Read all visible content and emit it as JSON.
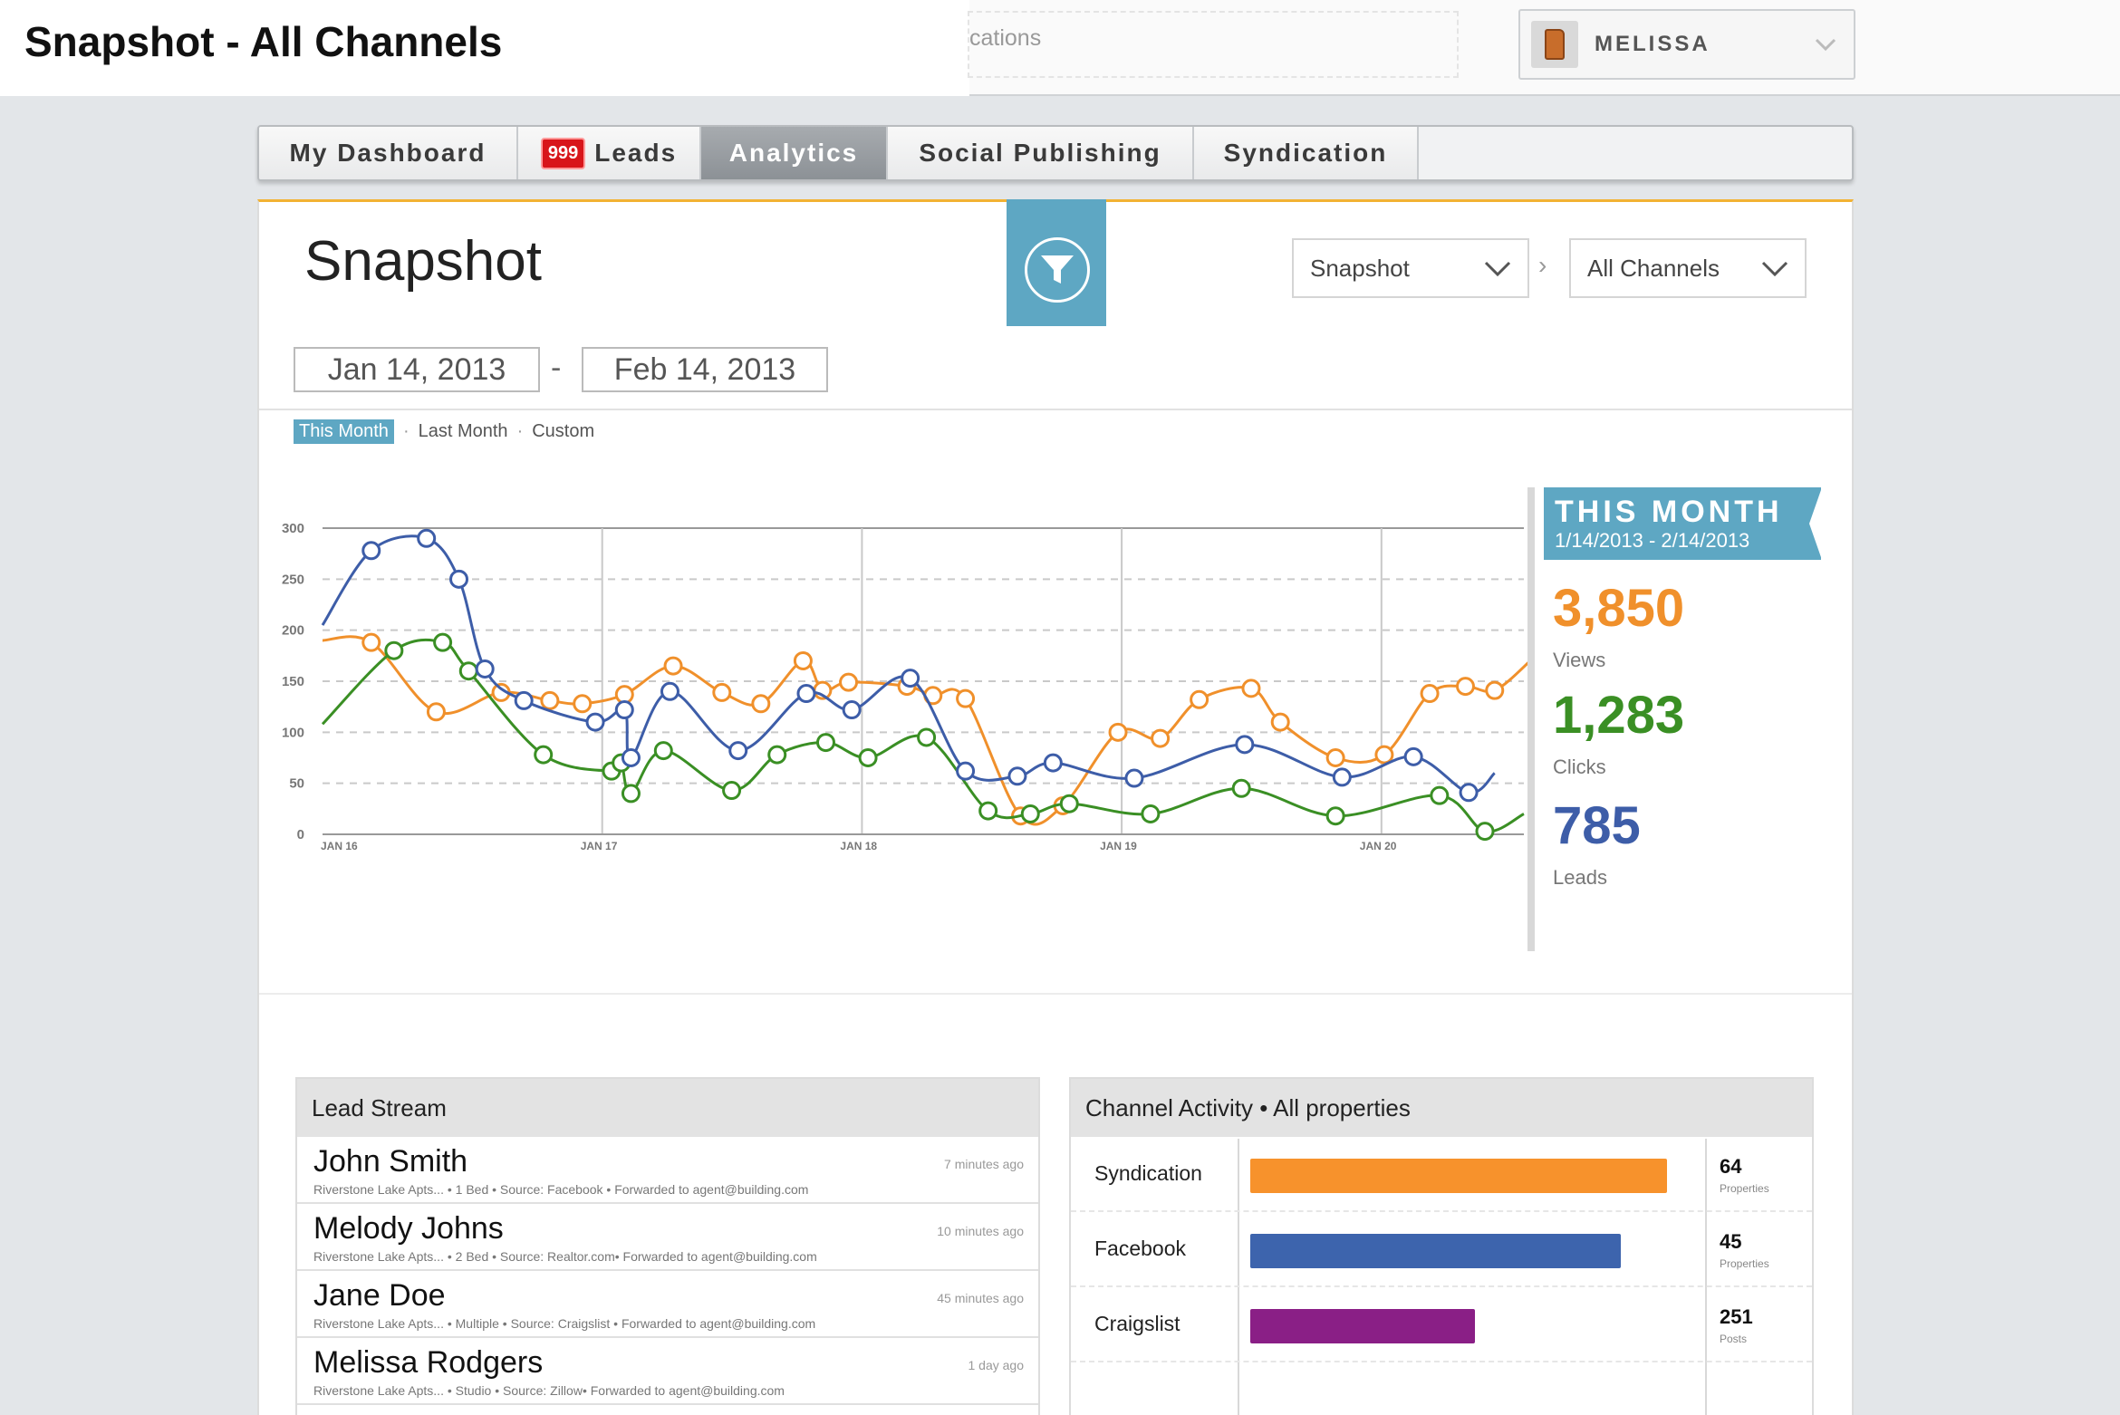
{
  "window": {
    "title": "Snapshot - All Channels"
  },
  "header": {
    "search_text": "cations",
    "user": {
      "name": "MELISSA"
    }
  },
  "tabs": [
    {
      "label": "My Dashboard"
    },
    {
      "label": "Leads",
      "badge": "999"
    },
    {
      "label": "Analytics",
      "active": true
    },
    {
      "label": "Social Publishing"
    },
    {
      "label": "Syndication"
    }
  ],
  "page": {
    "title": "Snapshot",
    "report_select": "Snapshot",
    "channel_select": "All Channels",
    "date_from": "Jan 14, 2013",
    "date_to": "Feb 14, 2013",
    "date_separator": "-",
    "periods": [
      "This Month",
      "Last Month",
      "Custom"
    ]
  },
  "summary": {
    "label": "THIS MONTH",
    "range": "1/14/2013 - 2/14/2013",
    "views": {
      "value": "3,850",
      "label": "Views"
    },
    "clicks": {
      "value": "1,283",
      "label": "Clicks"
    },
    "leads": {
      "value": "785",
      "label": "Leads"
    }
  },
  "chart_data": {
    "type": "line",
    "ylim": [
      0,
      300
    ],
    "yticks": [
      0,
      50,
      100,
      150,
      200,
      250,
      300
    ],
    "xlim": [
      0,
      37
    ],
    "xticks": [
      {
        "x": 0,
        "label": "JAN 16"
      },
      {
        "x": 8,
        "label": "JAN 17"
      },
      {
        "x": 16,
        "label": "JAN 18"
      },
      {
        "x": 24,
        "label": "JAN 19"
      },
      {
        "x": 32,
        "label": "JAN 20"
      }
    ],
    "grid": {
      "horizontal": "dashed",
      "vertical": "solid"
    },
    "series": [
      {
        "color": "#f0902b",
        "points": [
          [
            0,
            190
          ],
          [
            1.5,
            188
          ],
          [
            3.5,
            120
          ],
          [
            5.5,
            139
          ],
          [
            7,
            131
          ],
          [
            8,
            128
          ],
          [
            9.3,
            137
          ],
          [
            10.8,
            165
          ],
          [
            12.3,
            139
          ],
          [
            13.5,
            128
          ],
          [
            14.8,
            170
          ],
          [
            15.4,
            141
          ],
          [
            16.2,
            149
          ],
          [
            18,
            145
          ],
          [
            18.8,
            136
          ],
          [
            19.8,
            133
          ],
          [
            21.5,
            18
          ],
          [
            22.8,
            28
          ],
          [
            24.5,
            100
          ],
          [
            25.8,
            94
          ],
          [
            27,
            132
          ],
          [
            28.6,
            143
          ],
          [
            29.5,
            110
          ],
          [
            31.2,
            75
          ],
          [
            32.7,
            78
          ],
          [
            34.1,
            138
          ],
          [
            35.2,
            145
          ],
          [
            36.1,
            141
          ],
          [
            37.2,
            170
          ]
        ]
      },
      {
        "color": "#3a8f24",
        "points": [
          [
            0,
            108
          ],
          [
            2.2,
            180
          ],
          [
            3.7,
            188
          ],
          [
            4.5,
            160
          ],
          [
            6.8,
            78
          ],
          [
            8.9,
            62
          ],
          [
            9.2,
            70
          ],
          [
            9.5,
            40
          ],
          [
            10.5,
            82
          ],
          [
            12.6,
            43
          ],
          [
            14,
            78
          ],
          [
            15.5,
            90
          ],
          [
            16.8,
            75
          ],
          [
            18.6,
            95
          ],
          [
            20.5,
            23
          ],
          [
            21.8,
            20
          ],
          [
            23,
            30
          ],
          [
            25.5,
            20
          ],
          [
            28.3,
            45
          ],
          [
            31.2,
            18
          ],
          [
            34.4,
            38
          ],
          [
            35.8,
            3
          ],
          [
            37,
            20
          ]
        ]
      },
      {
        "color": "#3d5da8",
        "points": [
          [
            0,
            205
          ],
          [
            1.5,
            278
          ],
          [
            3.2,
            290
          ],
          [
            4.2,
            250
          ],
          [
            5,
            162
          ],
          [
            6.2,
            131
          ],
          [
            8.4,
            110
          ],
          [
            9.3,
            122
          ],
          [
            9.5,
            75
          ],
          [
            10.7,
            140
          ],
          [
            12.8,
            82
          ],
          [
            14.9,
            138
          ],
          [
            16.3,
            122
          ],
          [
            18.1,
            153
          ],
          [
            19.8,
            62
          ],
          [
            21.4,
            57
          ],
          [
            22.5,
            70
          ],
          [
            25,
            55
          ],
          [
            28.4,
            88
          ],
          [
            31.4,
            56
          ],
          [
            33.6,
            76
          ],
          [
            35.3,
            41
          ],
          [
            36.1,
            60
          ]
        ]
      }
    ]
  },
  "lead_stream": {
    "title": "Lead Stream",
    "items": [
      {
        "name": "John Smith",
        "meta": "Riverstone Lake Apts... • 1 Bed • Source: Facebook • Forwarded to agent@building.com",
        "time": "7 minutes ago"
      },
      {
        "name": "Melody Johns",
        "meta": "Riverstone Lake Apts... • 2 Bed • Source: Realtor.com• Forwarded to agent@building.com",
        "time": "10 minutes ago"
      },
      {
        "name": "Jane Doe",
        "meta": "Riverstone Lake Apts... • Multiple • Source: Craigslist • Forwarded to agent@building.com",
        "time": "45 minutes ago"
      },
      {
        "name": "Melissa Rodgers",
        "meta": "Riverstone Lake Apts... • Studio • Source: Zillow• Forwarded to agent@building.com",
        "time": "1 day ago"
      }
    ]
  },
  "channel_activity": {
    "title": "Channel Activity • All properties",
    "items": [
      {
        "name": "Syndication",
        "count": "64",
        "unit": "Properties",
        "share": 1.0,
        "color": "#f7922c"
      },
      {
        "name": "Facebook",
        "count": "45",
        "unit": "Properties",
        "share": 0.89,
        "color": "#3d64ad"
      },
      {
        "name": "Craigslist",
        "count": "251",
        "unit": "Posts",
        "share": 0.54,
        "color": "#8a1f86"
      }
    ]
  }
}
